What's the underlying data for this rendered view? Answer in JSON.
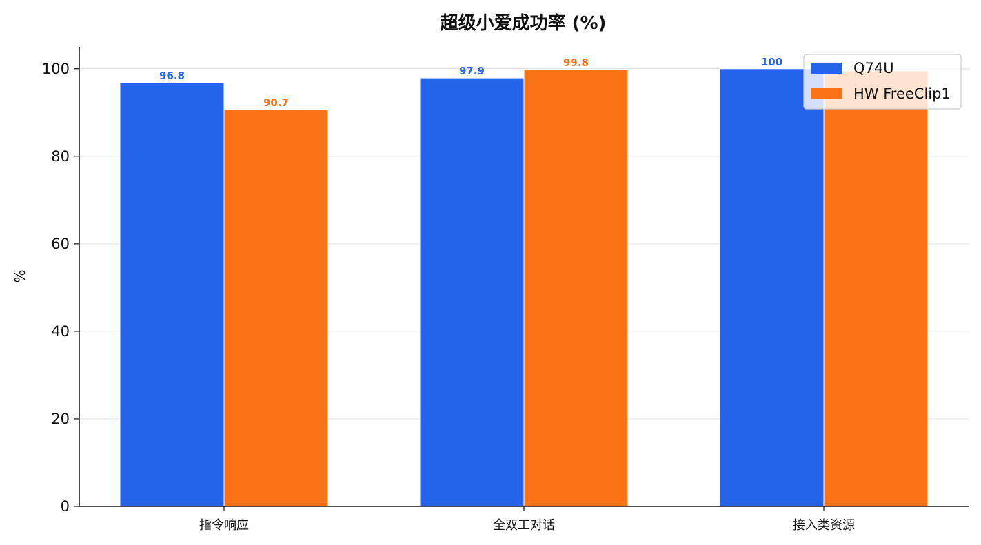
{
  "chart_data": {
    "type": "bar",
    "title": "超级小爱成功率 (%)",
    "xlabel": "",
    "ylabel": "%",
    "ylim": [
      0,
      105
    ],
    "yticks": [
      0,
      20,
      40,
      60,
      80,
      100
    ],
    "grid": "y",
    "categories": [
      "指令响应",
      "全双工对话",
      "接入类资源"
    ],
    "series": [
      {
        "name": "Q74U",
        "values": [
          96.8,
          97.9,
          100
        ],
        "color": "#2563EB",
        "labels": [
          "96.8",
          "97.9",
          "100"
        ]
      },
      {
        "name": "HW FreeClip1",
        "values": [
          90.7,
          99.8,
          99.5
        ],
        "color": "#F97316",
        "labels": [
          "90.7",
          "99.8",
          ""
        ]
      }
    ],
    "legend": "top-right"
  }
}
